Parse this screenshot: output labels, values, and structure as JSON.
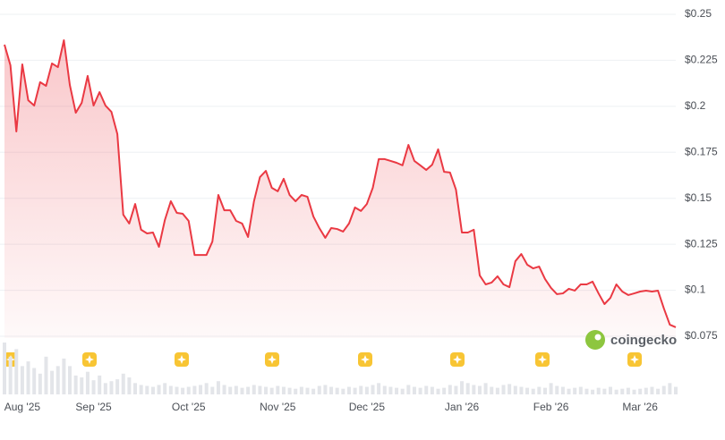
{
  "chart_data": {
    "type": "line",
    "watermark": "coingecko",
    "categories": [
      null,
      null,
      null,
      "Aug '25",
      null,
      null,
      null,
      null,
      null,
      null,
      null,
      null,
      null,
      null,
      null,
      "Sep '25",
      null,
      null,
      null,
      null,
      null,
      null,
      null,
      null,
      null,
      null,
      null,
      null,
      null,
      null,
      null,
      "Oct '25",
      null,
      null,
      null,
      null,
      null,
      null,
      null,
      null,
      null,
      null,
      null,
      null,
      null,
      null,
      "Nov '25",
      null,
      null,
      null,
      null,
      null,
      null,
      null,
      null,
      null,
      null,
      null,
      null,
      null,
      null,
      "Dec '25",
      null,
      null,
      null,
      null,
      null,
      null,
      null,
      null,
      null,
      null,
      null,
      null,
      null,
      null,
      null,
      "Jan '26",
      null,
      null,
      null,
      null,
      null,
      null,
      null,
      null,
      null,
      null,
      null,
      null,
      null,
      null,
      "Feb '26",
      null,
      null,
      null,
      null,
      null,
      null,
      null,
      null,
      null,
      null,
      null,
      null,
      null,
      null,
      "Mar '26",
      null,
      null,
      null,
      null,
      null,
      null
    ],
    "series": [
      {
        "color": "#ea3943",
        "values": [
          0.2335,
          0.2223,
          0.1863,
          0.2228,
          0.2033,
          0.2004,
          0.2131,
          0.2111,
          0.2233,
          0.2213,
          0.2359,
          0.2116,
          0.1965,
          0.2019,
          0.2165,
          0.2004,
          0.2077,
          0.2004,
          0.197,
          0.1849,
          0.1411,
          0.1363,
          0.1469,
          0.1329,
          0.1309,
          0.1314,
          0.1236,
          0.1382,
          0.1484,
          0.1421,
          0.1416,
          0.1377,
          0.1192,
          0.1192,
          0.1192,
          0.1265,
          0.1518,
          0.1435,
          0.1435,
          0.1377,
          0.1363,
          0.129,
          0.1484,
          0.1615,
          0.1649,
          0.1557,
          0.1538,
          0.1606,
          0.1518,
          0.1484,
          0.1518,
          0.1508,
          0.1401,
          0.1338,
          0.1285,
          0.1338,
          0.1333,
          0.1319,
          0.1363,
          0.145,
          0.1431,
          0.1469,
          0.1557,
          0.1713,
          0.1713,
          0.1703,
          0.1693,
          0.1679,
          0.179,
          0.1703,
          0.1679,
          0.1654,
          0.1683,
          0.1766,
          0.1644,
          0.164,
          0.1547,
          0.1314,
          0.1314,
          0.1329,
          0.1081,
          0.1032,
          0.1042,
          0.1076,
          0.1032,
          0.1017,
          0.1158,
          0.1197,
          0.1139,
          0.1119,
          0.1129,
          0.1061,
          0.1013,
          0.0979,
          0.0983,
          0.1008,
          0.0998,
          0.1032,
          0.1032,
          0.1047,
          0.0983,
          0.0925,
          0.0959,
          0.1032,
          0.0993,
          0.0974,
          0.0983,
          0.0993,
          0.0998,
          0.0993,
          0.0998,
          0.0901,
          0.0813,
          0.0799
        ]
      }
    ],
    "volume": [
      55,
      40,
      48,
      30,
      35,
      28,
      22,
      40,
      25,
      30,
      38,
      30,
      20,
      18,
      24,
      15,
      20,
      12,
      14,
      16,
      22,
      18,
      12,
      10,
      9,
      8,
      10,
      12,
      9,
      8,
      7,
      8,
      9,
      10,
      12,
      8,
      14,
      10,
      8,
      9,
      7,
      8,
      10,
      9,
      8,
      7,
      9,
      8,
      7,
      6,
      8,
      7,
      6,
      9,
      10,
      8,
      7,
      6,
      8,
      7,
      9,
      8,
      10,
      12,
      9,
      8,
      7,
      6,
      10,
      8,
      7,
      9,
      8,
      6,
      7,
      10,
      9,
      14,
      12,
      10,
      9,
      12,
      8,
      7,
      10,
      11,
      9,
      8,
      7,
      6,
      8,
      7,
      12,
      9,
      8,
      6,
      7,
      8,
      6,
      5,
      7,
      6,
      8,
      5,
      6,
      7,
      5,
      6,
      7,
      8,
      6,
      9,
      12,
      8
    ],
    "ylim": [
      0.075,
      0.25
    ],
    "yticks": [
      {
        "value": 0.075,
        "label": "$0.075"
      },
      {
        "value": 0.1,
        "label": "$0.1"
      },
      {
        "value": 0.125,
        "label": "$0.125"
      },
      {
        "value": 0.15,
        "label": "$0.15"
      },
      {
        "value": 0.175,
        "label": "$0.175"
      },
      {
        "value": 0.2,
        "label": "$0.2"
      },
      {
        "value": 0.225,
        "label": "$0.225"
      },
      {
        "value": 0.25,
        "label": "$0.25"
      }
    ],
    "grid": true
  }
}
